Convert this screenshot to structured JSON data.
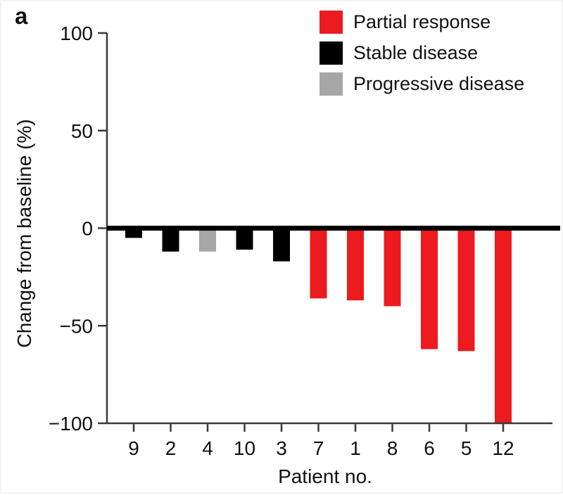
{
  "panel_label": "a",
  "chart_data": {
    "type": "bar",
    "title": "",
    "xlabel": "Patient no.",
    "ylabel": "Change from baseline (%)",
    "ylim": [
      -100,
      100
    ],
    "yticks": [
      100,
      50,
      0,
      -50,
      -100
    ],
    "ytick_labels": [
      "100",
      "50",
      "0",
      "−50",
      "−100"
    ],
    "categories": [
      "9",
      "2",
      "4",
      "10",
      "3",
      "7",
      "1",
      "8",
      "6",
      "5",
      "12"
    ],
    "values": [
      -5,
      -12,
      -12,
      -11,
      -17,
      -36,
      -37,
      -40,
      -62,
      -63,
      -100
    ],
    "point_groups": [
      "stable",
      "stable",
      "progressive",
      "stable",
      "stable",
      "partial",
      "partial",
      "partial",
      "partial",
      "partial",
      "partial"
    ],
    "groups": {
      "partial": {
        "label": "Partial response",
        "color": "#ec1b1f"
      },
      "stable": {
        "label": "Stable disease",
        "color": "#000000"
      },
      "progressive": {
        "label": "Progressive disease",
        "color": "#a6a6a6"
      }
    },
    "grid": false,
    "legend_position": "top-right"
  },
  "legend": {
    "items": [
      {
        "label": "Partial response",
        "color": "#ec1b1f"
      },
      {
        "label": "Stable disease",
        "color": "#000000"
      },
      {
        "label": "Progressive disease",
        "color": "#a6a6a6"
      }
    ]
  },
  "colors": {
    "axis": "#3a3a3a",
    "zero_line": "#000000",
    "text": "#111111",
    "background": "#ffffff"
  }
}
